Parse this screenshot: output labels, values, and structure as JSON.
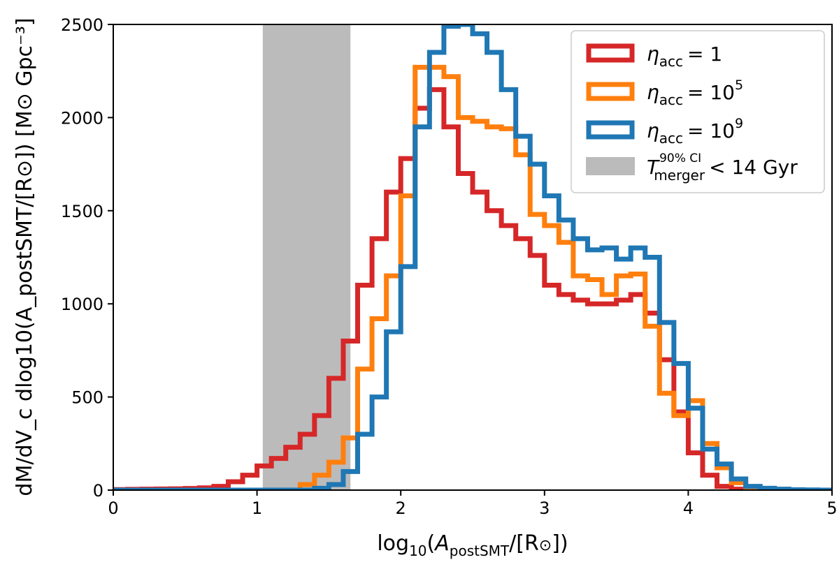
{
  "chart_data": {
    "type": "line",
    "title": "",
    "xlabel": {
      "pre": "log",
      "sub": "10",
      "mid": "(",
      "italic": "A",
      "sub2": "postSMT",
      "post": "/[R",
      "sun": "⊙",
      "end": "])"
    },
    "ylabel": {
      "text": "dM/dV_c dlog10(A_postSMT/[R⊙]) [M⊙ Gpc⁻³]"
    },
    "xlim": [
      0,
      5
    ],
    "ylim": [
      0,
      2500
    ],
    "x_ticks": [
      0,
      1,
      2,
      3,
      4,
      5
    ],
    "x_tick_labels": [
      "0",
      "1",
      "2",
      "3",
      "4",
      "5"
    ],
    "y_ticks": [
      0,
      500,
      1000,
      1500,
      2000,
      2500
    ],
    "y_tick_labels": [
      "0",
      "500",
      "1000",
      "1500",
      "2000",
      "2500"
    ],
    "grid": false,
    "legend_position": "top-right",
    "shaded_region": {
      "x_start": 1.04,
      "x_end": 1.65,
      "color": "#bbbbbb",
      "label": {
        "sym": "T",
        "sup": "90% CI",
        "sub": "merger",
        "rest": "< 14 Gyr"
      }
    },
    "bin_edges": [
      0.0,
      0.1,
      0.2,
      0.3,
      0.4,
      0.5,
      0.6,
      0.7,
      0.8,
      0.9,
      1.0,
      1.1,
      1.2,
      1.3,
      1.4,
      1.5,
      1.6,
      1.7,
      1.8,
      1.9,
      2.0,
      2.1,
      2.2,
      2.3,
      2.4,
      2.5,
      2.6,
      2.7,
      2.8,
      2.9,
      3.0,
      3.1,
      3.2,
      3.3,
      3.4,
      3.5,
      3.6,
      3.7,
      3.8,
      3.9,
      4.0,
      4.1,
      4.2,
      4.3,
      4.4,
      4.5,
      4.6,
      4.7,
      4.8,
      4.9,
      5.0
    ],
    "series": [
      {
        "name_sym": "η",
        "name_sub": "acc",
        "name_val": "= 1",
        "name_sup": "",
        "color": "#d62728",
        "values": [
          3,
          4,
          5,
          6,
          7,
          9,
          12,
          20,
          45,
          80,
          130,
          170,
          230,
          300,
          400,
          600,
          800,
          1100,
          1350,
          1600,
          1780,
          2050,
          2150,
          1950,
          1700,
          1600,
          1500,
          1420,
          1350,
          1260,
          1100,
          1050,
          1020,
          1000,
          1000,
          1020,
          1050,
          950,
          700,
          420,
          200,
          80,
          20,
          5,
          2,
          1,
          1,
          0,
          0,
          0
        ]
      },
      {
        "name_sym": "η",
        "name_sub": "acc",
        "name_val": "= 10",
        "name_sup": "5",
        "color": "#ff7f0e",
        "values": [
          0,
          0,
          0,
          0,
          0,
          0,
          0,
          0,
          0,
          0,
          0,
          0,
          0,
          30,
          80,
          150,
          280,
          650,
          920,
          1150,
          1580,
          2270,
          2270,
          2220,
          2000,
          1980,
          1950,
          1940,
          1800,
          1480,
          1420,
          1330,
          1150,
          1130,
          1050,
          1150,
          1160,
          880,
          520,
          400,
          480,
          250,
          120,
          40,
          10,
          5,
          2,
          1,
          0,
          0
        ]
      },
      {
        "name_sym": "η",
        "name_sub": "acc",
        "name_val": "= 10",
        "name_sup": "9",
        "color": "#1f77b4",
        "values": [
          0,
          0,
          0,
          0,
          0,
          0,
          0,
          0,
          0,
          0,
          0,
          0,
          0,
          0,
          10,
          30,
          100,
          300,
          500,
          850,
          1200,
          1950,
          2350,
          2490,
          2500,
          2450,
          2350,
          2150,
          1900,
          1750,
          1580,
          1450,
          1350,
          1290,
          1300,
          1240,
          1300,
          1250,
          900,
          680,
          440,
          220,
          140,
          60,
          20,
          10,
          5,
          2,
          1,
          0
        ]
      }
    ]
  }
}
